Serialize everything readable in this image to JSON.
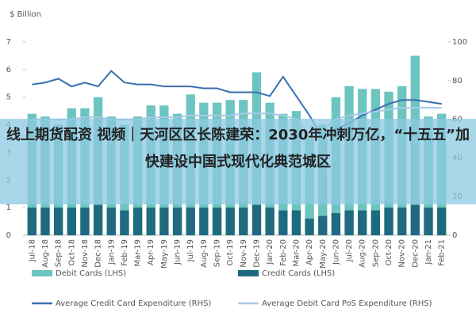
{
  "chart_data": {
    "type": "bar",
    "y_label": "$ Billion",
    "categories": [
      "Jul-18",
      "Aug-18",
      "Sep-18",
      "Oct-18",
      "Nov-18",
      "Dec-18",
      "Jan-19",
      "Feb-19",
      "Mar-19",
      "Apr-19",
      "May-19",
      "Jun-19",
      "Jul-19",
      "Aug-19",
      "Sep-19",
      "Oct-19",
      "Nov-19",
      "Dec-19",
      "Jan-20",
      "Feb-20",
      "Mar-20",
      "Apr-20",
      "May-20",
      "Jun-20",
      "Jul-20",
      "Aug-20",
      "Sep-20",
      "Oct-20",
      "Nov-20",
      "Dec-20",
      "Jan-21",
      "Feb-21"
    ],
    "series": [
      {
        "name": "Debit Cards (LHS)",
        "type": "bar",
        "color": "#6cc5c0",
        "values": [
          4.4,
          4.3,
          4.0,
          4.6,
          4.6,
          5.0,
          4.3,
          4.0,
          4.3,
          4.7,
          4.7,
          4.4,
          5.1,
          4.8,
          4.8,
          4.9,
          4.9,
          5.9,
          4.8,
          4.4,
          4.5,
          3.5,
          4.0,
          5.0,
          5.4,
          5.3,
          5.3,
          5.2,
          5.4,
          6.5,
          4.3,
          4.4
        ]
      },
      {
        "name": "Credit Cards (LHS)",
        "type": "bar",
        "color": "#1e6b7f",
        "values": [
          1.0,
          1.0,
          1.0,
          1.0,
          1.0,
          1.1,
          1.0,
          0.9,
          1.0,
          1.0,
          1.0,
          1.0,
          1.0,
          1.0,
          1.0,
          1.0,
          1.0,
          1.1,
          1.0,
          0.9,
          0.9,
          0.6,
          0.7,
          0.8,
          0.9,
          0.9,
          0.9,
          1.0,
          1.0,
          1.1,
          1.0,
          1.0
        ]
      },
      {
        "name": "Average Credit Card Expenditure (RHS)",
        "type": "line",
        "axis": "y2",
        "color": "#3a6fb0",
        "values": [
          78,
          79,
          81,
          77,
          79,
          77,
          85,
          79,
          78,
          78,
          77,
          77,
          77,
          76,
          76,
          74,
          74,
          74,
          72,
          82,
          72,
          62,
          50,
          55,
          58,
          62,
          65,
          68,
          70,
          70,
          69,
          68
        ]
      },
      {
        "name": "Average Debit Card PoS Expenditure (RHS)",
        "type": "line",
        "axis": "y2",
        "color": "#a9c8e8",
        "values": [
          60,
          60,
          60,
          60,
          61,
          61,
          60,
          60,
          60,
          61,
          61,
          61,
          62,
          62,
          62,
          62,
          63,
          63,
          63,
          62,
          60,
          52,
          55,
          60,
          62,
          63,
          64,
          65,
          66,
          66,
          66,
          66
        ]
      }
    ],
    "ylim": [
      0,
      7
    ],
    "yticks": [
      0,
      1,
      2,
      3,
      4,
      5,
      6,
      7
    ],
    "y2lim": [
      0,
      100
    ],
    "y2ticks": [
      0,
      20,
      40,
      60,
      80,
      100
    ]
  },
  "overlay_text": "线上期货配资 视频｜天河区区长陈建荣：2030年冲刺万亿，“十五五”加快建设中国式现代化典范城区"
}
